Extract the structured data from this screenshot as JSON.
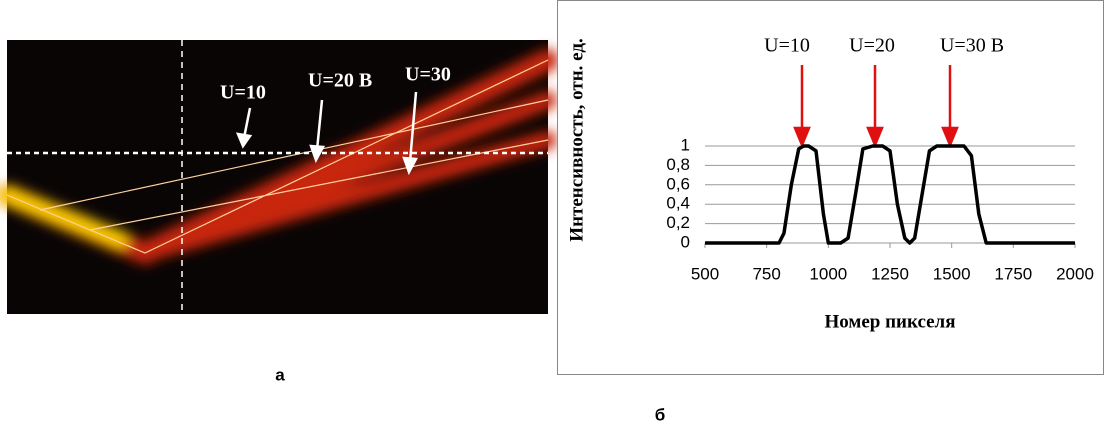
{
  "photo": {
    "labels": [
      "U=10",
      "U=20 В",
      "U=30"
    ],
    "caption": "а"
  },
  "chart_data": {
    "type": "line",
    "x_label": "Номер пикселя",
    "y_label": "Интенсивность, отн. ед.",
    "annotations": [
      "U=10",
      "U=20",
      "U=30 В"
    ],
    "caption": "б",
    "x": [
      500,
      800,
      820,
      850,
      880,
      900,
      920,
      950,
      980,
      1000,
      1050,
      1080,
      1110,
      1140,
      1180,
      1220,
      1250,
      1280,
      1310,
      1330,
      1350,
      1380,
      1410,
      1440,
      1500,
      1550,
      1580,
      1610,
      1640,
      2000
    ],
    "series": [
      {
        "color": "#000000",
        "values": [
          0,
          0,
          0.1,
          0.6,
          0.97,
          1,
          1,
          0.95,
          0.3,
          0,
          0,
          0.05,
          0.5,
          0.97,
          1,
          1,
          0.95,
          0.4,
          0.05,
          0,
          0.05,
          0.5,
          0.95,
          1,
          1,
          1,
          0.9,
          0.3,
          0,
          0
        ]
      }
    ],
    "xlim": [
      500,
      2000
    ],
    "xticks": [
      500,
      750,
      1000,
      1250,
      1500,
      1750,
      2000
    ],
    "ylim": [
      0,
      1
    ],
    "yticks": [
      0,
      {
        "value": 0.2,
        "label": "0,2"
      },
      {
        "value": 0.4,
        "label": "0,4"
      },
      {
        "value": 0.6,
        "label": "0,6"
      },
      {
        "value": 0.8,
        "label": "0,8"
      },
      1
    ],
    "grid": true
  }
}
